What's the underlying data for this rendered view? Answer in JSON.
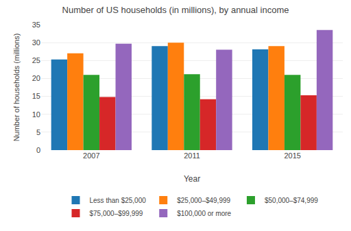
{
  "chart_data": {
    "type": "bar",
    "title": "Number of US households (in millions), by annual income",
    "xlabel": "Year",
    "ylabel": "Number of households (millions)",
    "categories": [
      "2007",
      "2011",
      "2015"
    ],
    "series": [
      {
        "name": "Less than $25,000",
        "values": [
          25.3,
          29.0,
          28.1
        ]
      },
      {
        "name": "$25,000–$49,999",
        "values": [
          27.0,
          30.0,
          29.0
        ]
      },
      {
        "name": "$50,000–$74,999",
        "values": [
          21.0,
          21.2,
          21.0
        ]
      },
      {
        "name": "$75,000–$99,999",
        "values": [
          14.8,
          14.2,
          15.3
        ]
      },
      {
        "name": "$100,000 or more",
        "values": [
          29.7,
          28.0,
          33.5
        ]
      }
    ],
    "ylim": [
      0,
      35
    ],
    "yticks": [
      0,
      5,
      10,
      15,
      20,
      25,
      30,
      35
    ],
    "grid": true,
    "legend": "bottom"
  }
}
